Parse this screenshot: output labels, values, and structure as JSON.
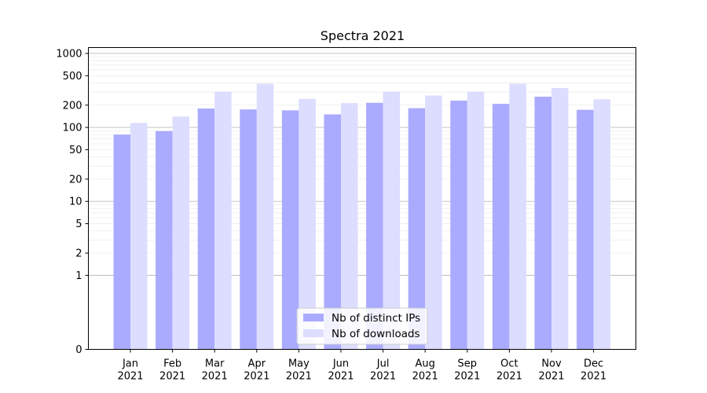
{
  "chart_data": {
    "type": "bar",
    "title": "Spectra 2021",
    "xlabel": "",
    "ylabel": "",
    "yscale": "symlog",
    "ylim": [
      0,
      1200
    ],
    "yticks": [
      "0",
      "1",
      "2",
      "5",
      "10",
      "20",
      "50",
      "100",
      "200",
      "500",
      "1000"
    ],
    "grid": true,
    "legend_position": "bottom-center",
    "categories": [
      [
        "Jan",
        "2021"
      ],
      [
        "Feb",
        "2021"
      ],
      [
        "Mar",
        "2021"
      ],
      [
        "Apr",
        "2021"
      ],
      [
        "May",
        "2021"
      ],
      [
        "Jun",
        "2021"
      ],
      [
        "Jul",
        "2021"
      ],
      [
        "Aug",
        "2021"
      ],
      [
        "Sep",
        "2021"
      ],
      [
        "Oct",
        "2021"
      ],
      [
        "Nov",
        "2021"
      ],
      [
        "Dec",
        "2021"
      ]
    ],
    "series": [
      {
        "name": "Nb of distinct IPs",
        "color": "#aaaaff",
        "values": [
          80,
          89,
          180,
          175,
          170,
          150,
          215,
          182,
          230,
          208,
          260,
          173
        ]
      },
      {
        "name": "Nb of downloads",
        "color": "#ddddff",
        "values": [
          115,
          140,
          305,
          390,
          243,
          213,
          305,
          270,
          305,
          390,
          340,
          240
        ]
      }
    ]
  }
}
